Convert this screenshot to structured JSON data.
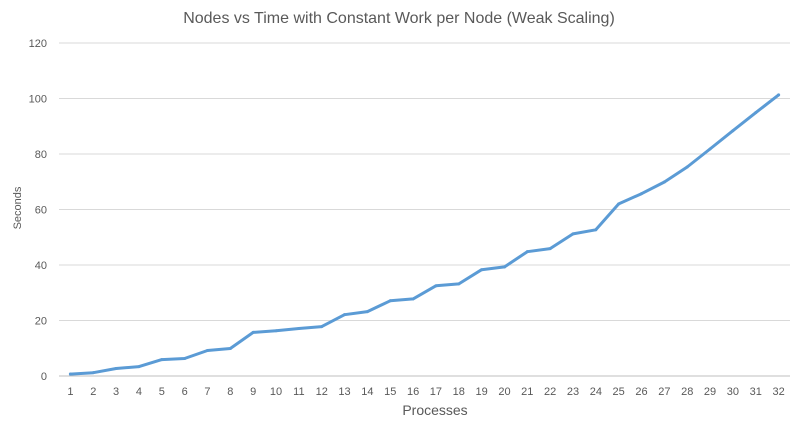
{
  "chart_data": {
    "type": "line",
    "title": "Nodes vs Time with Constant Work per Node (Weak Scaling)",
    "xlabel": "Processes",
    "ylabel": "Seconds",
    "categories": [
      "1",
      "2",
      "3",
      "4",
      "5",
      "6",
      "7",
      "8",
      "9",
      "10",
      "11",
      "12",
      "13",
      "14",
      "15",
      "16",
      "17",
      "18",
      "19",
      "20",
      "21",
      "22",
      "23",
      "24",
      "25",
      "26",
      "27",
      "28",
      "29",
      "30",
      "31",
      "32"
    ],
    "series": [
      {
        "values": [
          0.7,
          1.2,
          2.7,
          3.4,
          5.9,
          6.3,
          9.2,
          9.9,
          15.7,
          16.3,
          17.1,
          17.8,
          22.1,
          23.2,
          27.1,
          27.8,
          32.5,
          33.2,
          38.3,
          39.3,
          44.8,
          45.9,
          51.2,
          52.7,
          62.0,
          65.7,
          69.9,
          75.3,
          81.8,
          88.4,
          94.9,
          101.3
        ],
        "color": "#5b9bd5"
      }
    ],
    "ylim": [
      0,
      120
    ],
    "yticks": [
      0,
      20,
      40,
      60,
      80,
      100,
      120
    ],
    "grid": "horizontal",
    "legend": "none"
  }
}
